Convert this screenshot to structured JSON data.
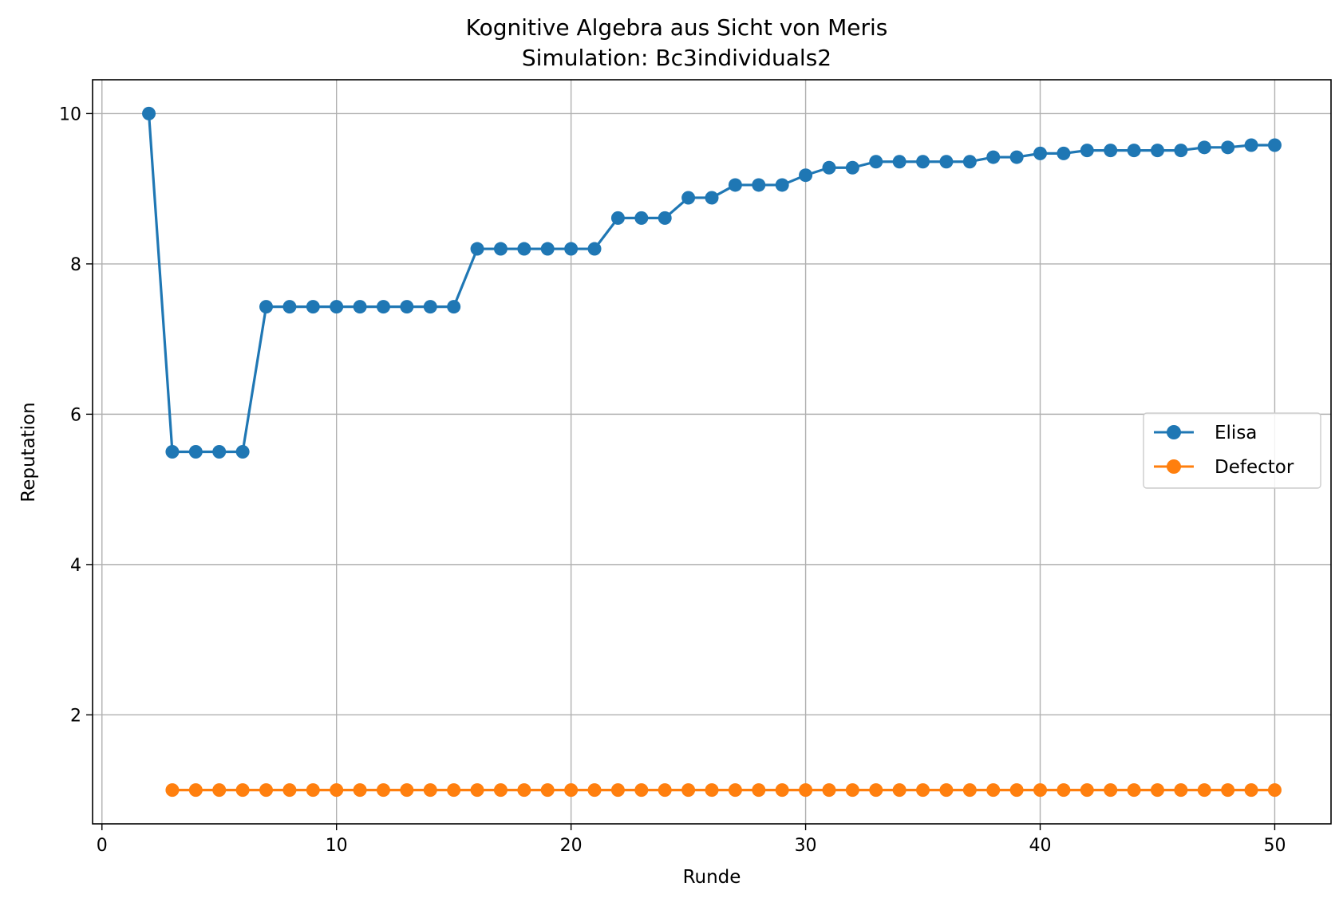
{
  "chart_data": {
    "type": "line",
    "title": "Kognitive Algebra aus Sicht von Meris",
    "subtitle": "Simulation: Bc3individuals2",
    "xlabel": "Runde",
    "ylabel": "Reputation",
    "xlim": [
      -0.4,
      52.4
    ],
    "ylim": [
      0.55,
      10.45
    ],
    "xticks": [
      0,
      10,
      20,
      30,
      40,
      50
    ],
    "yticks": [
      2,
      4,
      6,
      8,
      10
    ],
    "grid": true,
    "legend_position": "center-right",
    "series": [
      {
        "name": "Elisa",
        "color": "#1f77b4",
        "marker": "circle",
        "x": [
          2,
          3,
          4,
          5,
          6,
          7,
          8,
          9,
          10,
          11,
          12,
          13,
          14,
          15,
          16,
          17,
          18,
          19,
          20,
          21,
          22,
          23,
          24,
          25,
          26,
          27,
          28,
          29,
          30,
          31,
          32,
          33,
          34,
          35,
          36,
          37,
          38,
          39,
          40,
          41,
          42,
          43,
          44,
          45,
          46,
          47,
          48,
          49,
          50
        ],
        "y": [
          10,
          5.5,
          5.5,
          5.5,
          5.5,
          7.43,
          7.43,
          7.43,
          7.43,
          7.43,
          7.43,
          7.43,
          7.43,
          7.43,
          8.2,
          8.2,
          8.2,
          8.2,
          8.2,
          8.2,
          8.61,
          8.61,
          8.61,
          8.88,
          8.88,
          9.05,
          9.05,
          9.05,
          9.18,
          9.28,
          9.28,
          9.36,
          9.36,
          9.36,
          9.36,
          9.36,
          9.42,
          9.42,
          9.47,
          9.47,
          9.51,
          9.51,
          9.51,
          9.51,
          9.51,
          9.55,
          9.55,
          9.58,
          9.58
        ]
      },
      {
        "name": "Defector",
        "color": "#ff7f0e",
        "marker": "circle",
        "x": [
          3,
          4,
          5,
          6,
          7,
          8,
          9,
          10,
          11,
          12,
          13,
          14,
          15,
          16,
          17,
          18,
          19,
          20,
          21,
          22,
          23,
          24,
          25,
          26,
          27,
          28,
          29,
          30,
          31,
          32,
          33,
          34,
          35,
          36,
          37,
          38,
          39,
          40,
          41,
          42,
          43,
          44,
          45,
          46,
          47,
          48,
          49,
          50
        ],
        "y": [
          1,
          1,
          1,
          1,
          1,
          1,
          1,
          1,
          1,
          1,
          1,
          1,
          1,
          1,
          1,
          1,
          1,
          1,
          1,
          1,
          1,
          1,
          1,
          1,
          1,
          1,
          1,
          1,
          1,
          1,
          1,
          1,
          1,
          1,
          1,
          1,
          1,
          1,
          1,
          1,
          1,
          1,
          1,
          1,
          1,
          1,
          1,
          1
        ]
      }
    ]
  }
}
